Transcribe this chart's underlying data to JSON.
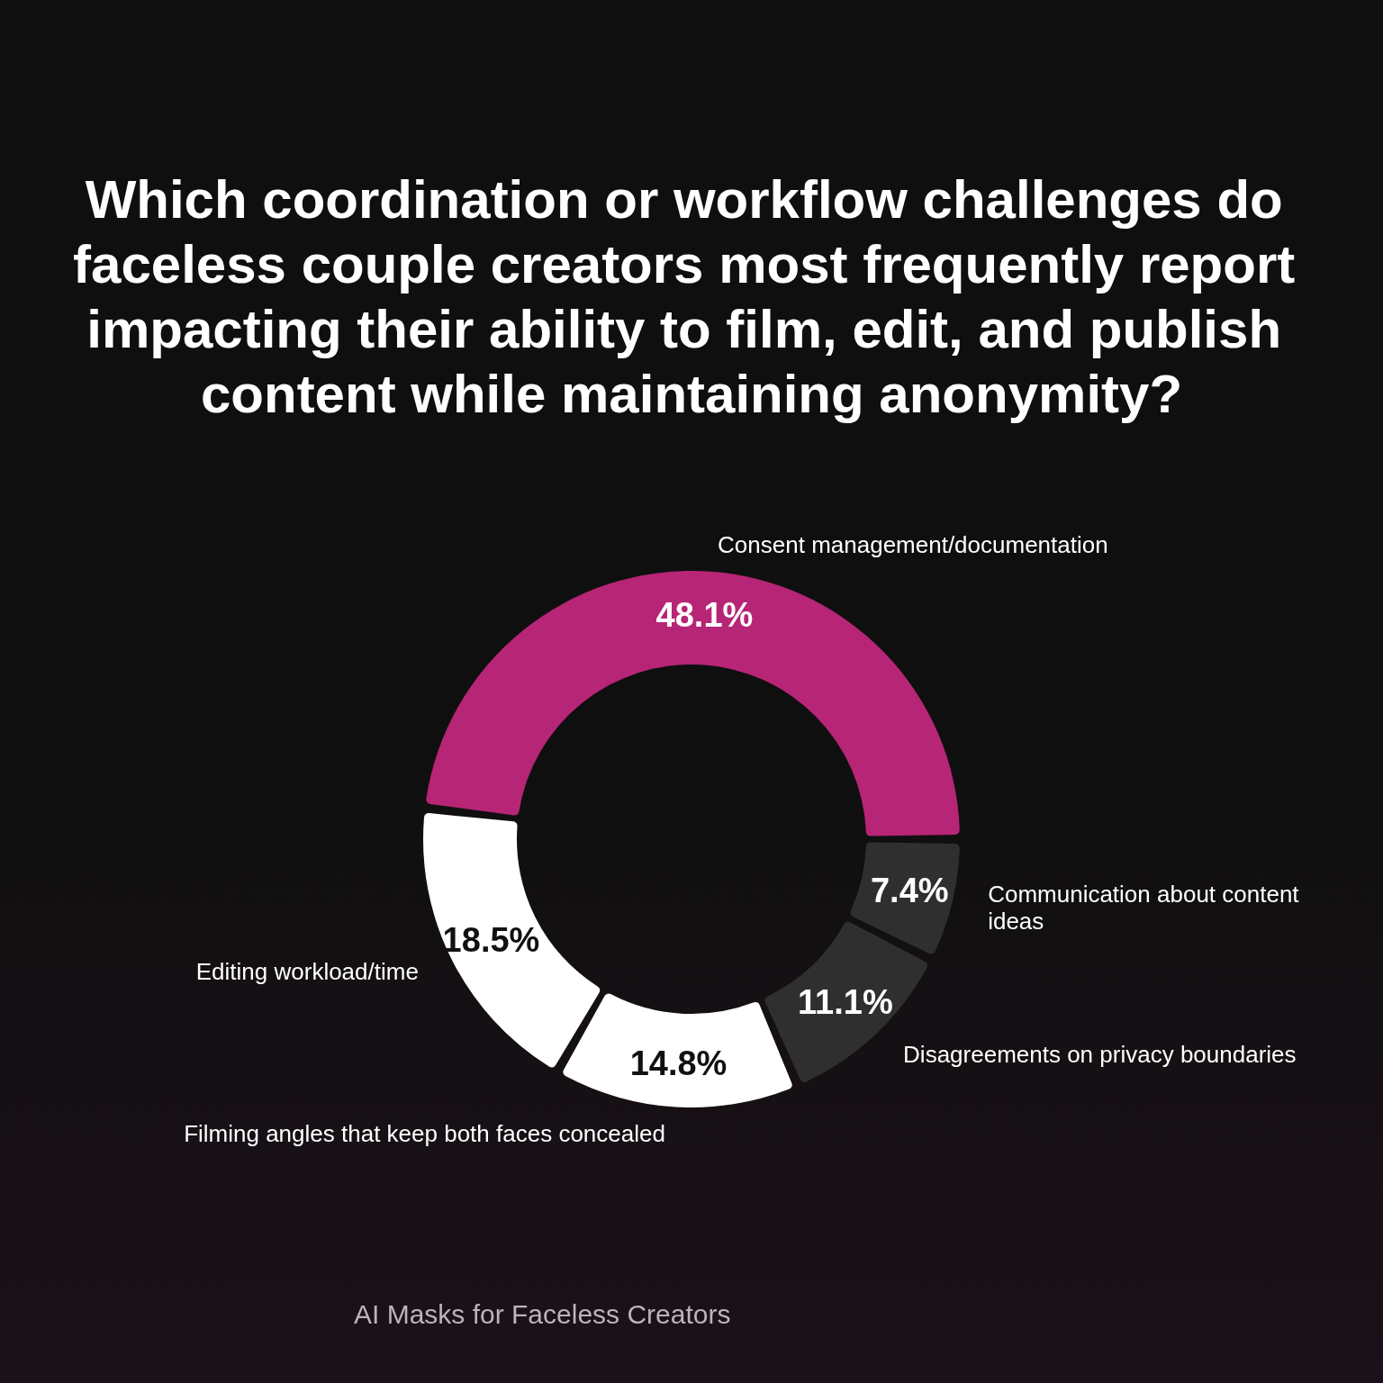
{
  "chart_data": {
    "type": "donut",
    "title": "Which coordination or workflow challenges do faceless couple creators most frequently report impacting their ability to film, edit, and publish content while maintaining anonymity?",
    "categories": [
      "Consent management/documentation",
      "Communication about content ideas",
      "Disagreements on privacy boundaries",
      "Filming angles that keep both faces concealed",
      "Editing workload/time"
    ],
    "values": [
      48.1,
      7.4,
      11.1,
      14.8,
      18.5
    ],
    "colors": [
      "#b72576",
      "#2f2f2f",
      "#2f2f2f",
      "#ffffff",
      "#ffffff"
    ],
    "value_labels": [
      "48.1%",
      "7.4%",
      "11.1%",
      "14.8%",
      "18.5%"
    ],
    "annotations": [
      "AI Masks for Faceless Creators"
    ]
  }
}
